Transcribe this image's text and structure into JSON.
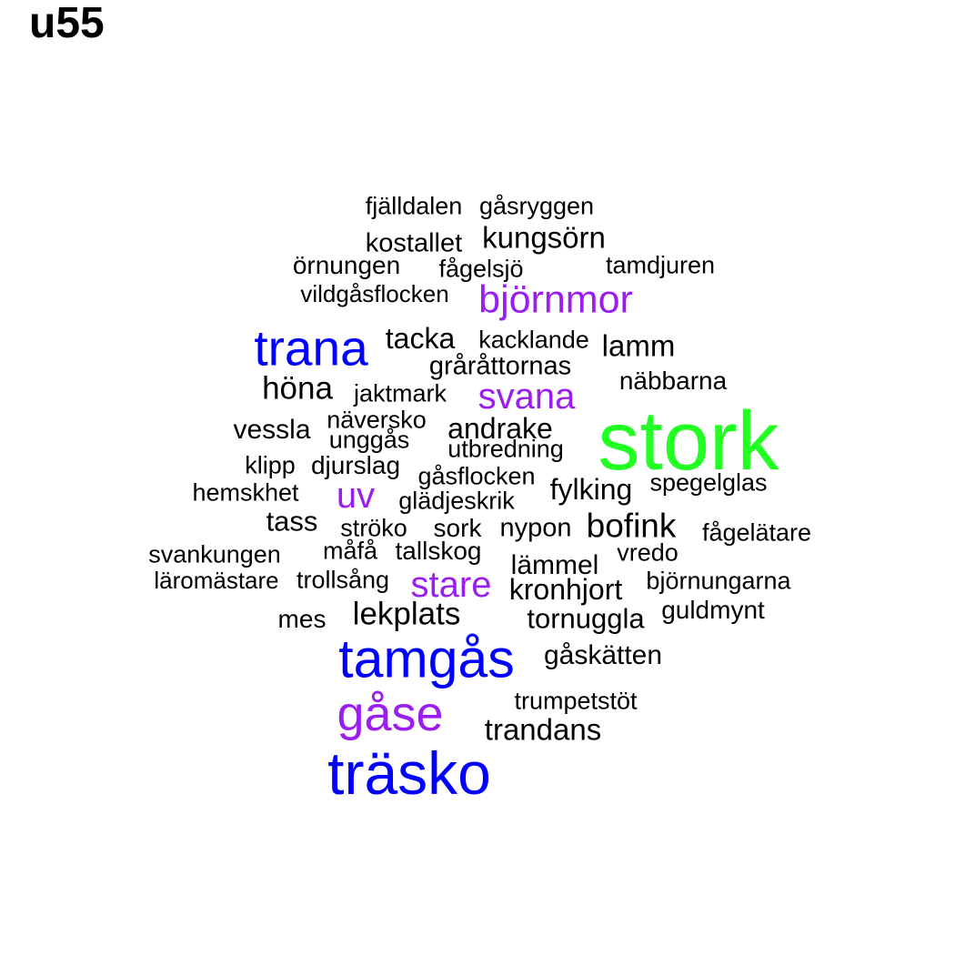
{
  "title": "u55",
  "colors": {
    "black": "#000000",
    "blue": "#0000ff",
    "purple": "#9a1ef0",
    "green": "#22ff22"
  },
  "words": [
    {
      "text": "stork",
      "color": "green"
    },
    {
      "text": "träsko",
      "color": "blue"
    },
    {
      "text": "tamgås",
      "color": "blue"
    },
    {
      "text": "trana",
      "color": "blue"
    },
    {
      "text": "gåse",
      "color": "purple"
    },
    {
      "text": "björnmor",
      "color": "purple"
    },
    {
      "text": "svana",
      "color": "purple"
    },
    {
      "text": "stare",
      "color": "purple"
    },
    {
      "text": "uv",
      "color": "purple"
    },
    {
      "text": "fjälldalen",
      "color": "black"
    },
    {
      "text": "gåsryggen",
      "color": "black"
    },
    {
      "text": "kostallet",
      "color": "black"
    },
    {
      "text": "kungsörn",
      "color": "black"
    },
    {
      "text": "örnungen",
      "color": "black"
    },
    {
      "text": "fågelsjö",
      "color": "black"
    },
    {
      "text": "tamdjuren",
      "color": "black"
    },
    {
      "text": "vildgåsflocken",
      "color": "black"
    },
    {
      "text": "tacka",
      "color": "black"
    },
    {
      "text": "kacklande",
      "color": "black"
    },
    {
      "text": "lamm",
      "color": "black"
    },
    {
      "text": "gråråttornas",
      "color": "black"
    },
    {
      "text": "näbbarna",
      "color": "black"
    },
    {
      "text": "höna",
      "color": "black"
    },
    {
      "text": "jaktmark",
      "color": "black"
    },
    {
      "text": "vessla",
      "color": "black"
    },
    {
      "text": "näversko",
      "color": "black"
    },
    {
      "text": "andrake",
      "color": "black"
    },
    {
      "text": "unggås",
      "color": "black"
    },
    {
      "text": "utbredning",
      "color": "black"
    },
    {
      "text": "klipp",
      "color": "black"
    },
    {
      "text": "djurslag",
      "color": "black"
    },
    {
      "text": "gåsflocken",
      "color": "black"
    },
    {
      "text": "spegelglas",
      "color": "black"
    },
    {
      "text": "hemskhet",
      "color": "black"
    },
    {
      "text": "fylking",
      "color": "black"
    },
    {
      "text": "glädjeskrik",
      "color": "black"
    },
    {
      "text": "tass",
      "color": "black"
    },
    {
      "text": "ströko",
      "color": "black"
    },
    {
      "text": "sork",
      "color": "black"
    },
    {
      "text": "nypon",
      "color": "black"
    },
    {
      "text": "bofink",
      "color": "black"
    },
    {
      "text": "fågelätare",
      "color": "black"
    },
    {
      "text": "svankungen",
      "color": "black"
    },
    {
      "text": "måfå",
      "color": "black"
    },
    {
      "text": "tallskog",
      "color": "black"
    },
    {
      "text": "vredo",
      "color": "black"
    },
    {
      "text": "lämmel",
      "color": "black"
    },
    {
      "text": "läromästare",
      "color": "black"
    },
    {
      "text": "trollsång",
      "color": "black"
    },
    {
      "text": "kronhjort",
      "color": "black"
    },
    {
      "text": "björnungarna",
      "color": "black"
    },
    {
      "text": "guldmynt",
      "color": "black"
    },
    {
      "text": "lekplats",
      "color": "black"
    },
    {
      "text": "mes",
      "color": "black"
    },
    {
      "text": "tornuggla",
      "color": "black"
    },
    {
      "text": "gåskätten",
      "color": "black"
    },
    {
      "text": "trumpetstöt",
      "color": "black"
    },
    {
      "text": "trandans",
      "color": "black"
    }
  ]
}
